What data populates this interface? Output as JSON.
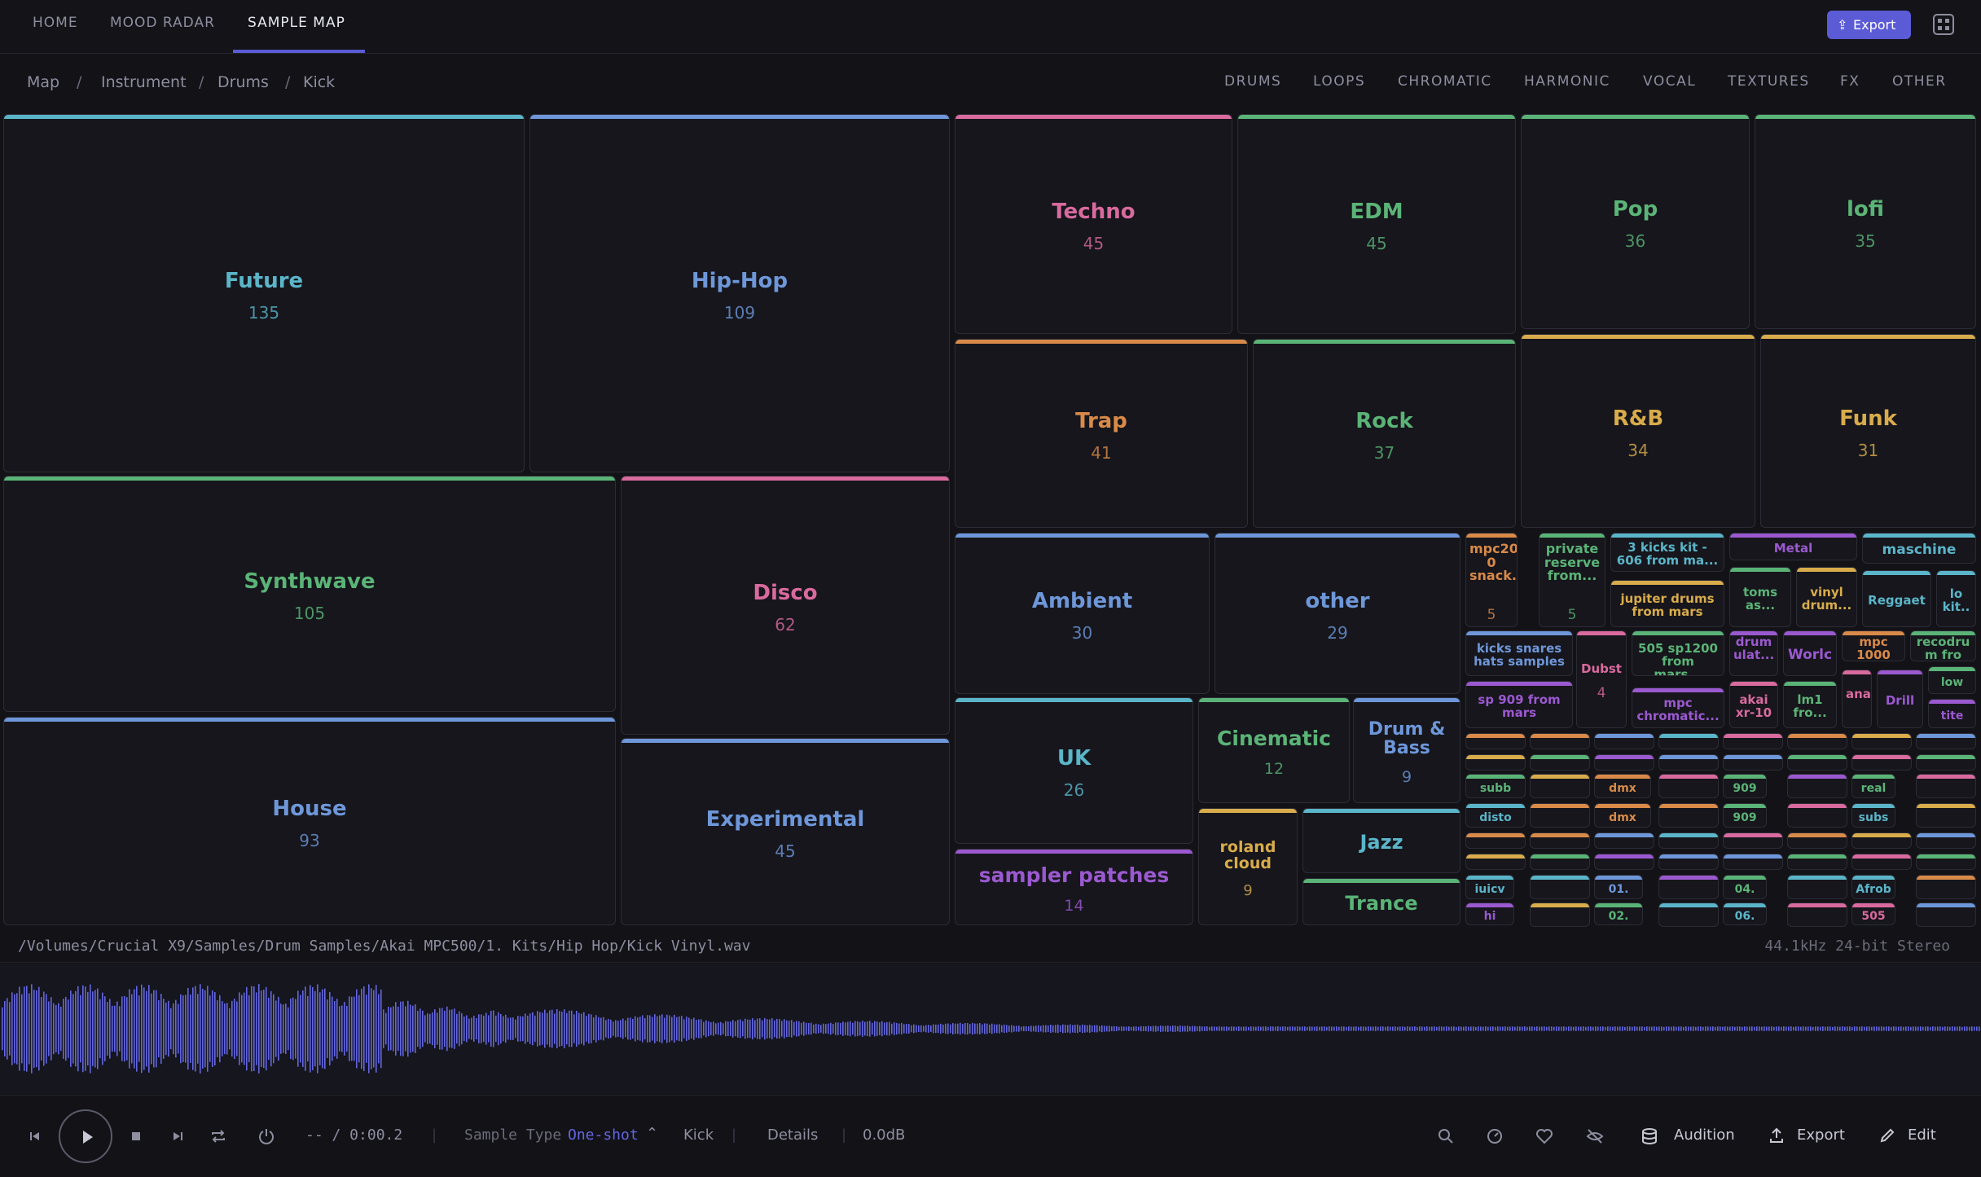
{
  "nav": {
    "tabs": [
      "HOME",
      "MOOD RADAR",
      "SAMPLE MAP"
    ],
    "active": 2,
    "export_label": "Export"
  },
  "breadcrumb": [
    "Map",
    "Instrument",
    "Drums",
    "Kick"
  ],
  "categories": [
    "DRUMS",
    "LOOPS",
    "CHROMATIC",
    "HARMONIC",
    "VOCAL",
    "TEXTURES",
    "FX",
    "OTHER"
  ],
  "colors": {
    "accent": "#5b5bd6",
    "bg": "#121217",
    "tile_bg": "#16161c",
    "tile_border": "#2c2c36",
    "blue": "#6e97d9",
    "cyan": "#5bb5c9",
    "pink": "#d96a9e",
    "green": "#5bb477",
    "orange": "#d98a48",
    "yellow": "#d9ac4b",
    "purple": "#9b59d0",
    "waveform": "#6366e0"
  },
  "genres": {
    "future": {
      "name": "Future",
      "count": "135"
    },
    "hiphop": {
      "name": "Hip-Hop",
      "count": "109"
    },
    "synthwave": {
      "name": "Synthwave",
      "count": "105"
    },
    "disco": {
      "name": "Disco",
      "count": "62"
    },
    "house": {
      "name": "House",
      "count": "93"
    },
    "experimental": {
      "name": "Experimental",
      "count": "45"
    },
    "techno": {
      "name": "Techno",
      "count": "45"
    },
    "edm": {
      "name": "EDM",
      "count": "45"
    },
    "pop": {
      "name": "Pop",
      "count": "36"
    },
    "lofi": {
      "name": "lofi",
      "count": "35"
    },
    "trap": {
      "name": "Trap",
      "count": "41"
    },
    "rock": {
      "name": "Rock",
      "count": "37"
    },
    "rnb": {
      "name": "R&B",
      "count": "34"
    },
    "funk": {
      "name": "Funk",
      "count": "31"
    },
    "ambient": {
      "name": "Ambient",
      "count": "30"
    },
    "other": {
      "name": "other",
      "count": "29"
    },
    "uk": {
      "name": "UK",
      "count": "26"
    },
    "cinematic": {
      "name": "Cinematic",
      "count": "12"
    },
    "dnb": {
      "name": "Drum & Bass",
      "count": "9"
    },
    "sampler": {
      "name": "sampler patches",
      "count": "14"
    },
    "roland": {
      "name": "roland cloud",
      "count": "9"
    },
    "jazz": {
      "name": "Jazz",
      "count": ""
    },
    "trance": {
      "name": "Trance",
      "count": ""
    }
  },
  "collections": {
    "mpc2000": {
      "name": "mpc200 0 snack...",
      "count": "5"
    },
    "private": {
      "name": "private reserve from...",
      "count": "5"
    },
    "kits3": {
      "name": "3 kicks kit - 606 from ma...",
      "count": ""
    },
    "jupiter": {
      "name": "jupiter drums from mars",
      "count": ""
    },
    "metal": {
      "name": "Metal",
      "count": ""
    },
    "maschine": {
      "name": "maschine",
      "count": ""
    },
    "toms": {
      "name": "toms as...",
      "count": ""
    },
    "vinyl": {
      "name": "vinyl drum...",
      "count": ""
    },
    "reggaet": {
      "name": "Reggaet",
      "count": ""
    },
    "lokit": {
      "name": "lo kit..",
      "count": ""
    },
    "ksh": {
      "name": "kicks snares hats samples",
      "count": ""
    },
    "dubst": {
      "name": "Dubst",
      "count": "4"
    },
    "sp505": {
      "name": "505 sp1200 from mars...",
      "count": ""
    },
    "drumulat": {
      "name": "drum ulat...",
      "count": ""
    },
    "world": {
      "name": "Worlc",
      "count": ""
    },
    "mpc1000": {
      "name": "mpc 1000",
      "count": ""
    },
    "recodru": {
      "name": "recodru m fro",
      "count": ""
    },
    "sp909": {
      "name": "sp 909 from mars",
      "count": ""
    },
    "mpcchrom": {
      "name": "mpc chromatic...",
      "count": ""
    },
    "akai": {
      "name": "akai xr-10",
      "count": ""
    },
    "lm1": {
      "name": "lm1 fro...",
      "count": ""
    },
    "analo": {
      "name": "analo",
      "count": ""
    },
    "drill": {
      "name": "Drill",
      "count": ""
    },
    "low": {
      "name": "low",
      "count": ""
    },
    "tite": {
      "name": "tite",
      "count": ""
    },
    "subb": {
      "name": "subb",
      "count": ""
    },
    "dmx1": {
      "name": "dmx",
      "count": ""
    },
    "n909a": {
      "name": "909",
      "count": ""
    },
    "real": {
      "name": "real",
      "count": ""
    },
    "disto": {
      "name": "disto",
      "count": ""
    },
    "dmx2": {
      "name": "dmx",
      "count": ""
    },
    "n909b": {
      "name": "909",
      "count": ""
    },
    "subs": {
      "name": "subs",
      "count": ""
    },
    "juicy": {
      "name": "iuicv",
      "count": ""
    },
    "n01": {
      "name": "01.",
      "count": ""
    },
    "n04": {
      "name": "04.",
      "count": ""
    },
    "afrob": {
      "name": "Afrob",
      "count": ""
    },
    "hi": {
      "name": "hi",
      "count": ""
    },
    "n02": {
      "name": "02.",
      "count": ""
    },
    "n06": {
      "name": "06.",
      "count": ""
    },
    "n505": {
      "name": "505",
      "count": ""
    }
  },
  "file": {
    "path": "/Volumes/Crucial X9/Samples/Drum Samples/Akai MPC500/1. Kits/Hip Hop/Kick Vinyl.wav",
    "format": "44.1kHz 24-bit Stereo"
  },
  "transport": {
    "time": "-- / 0:00.2",
    "sample_type_label": "Sample Type",
    "sample_type_value": "One-shot",
    "instrument": "Kick",
    "details": "Details",
    "gain": "0.0dB",
    "audition": "Audition",
    "export": "Export",
    "edit": "Edit"
  }
}
